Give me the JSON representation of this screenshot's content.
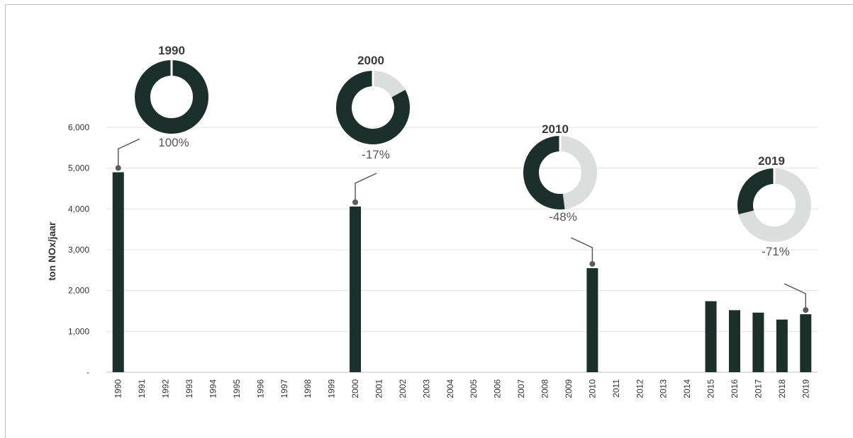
{
  "chart_data": {
    "type": "bar",
    "ylabel": "ton NOx/jaar",
    "xlabel": "",
    "title": "",
    "ylim": [
      0,
      6000
    ],
    "yticks": [
      0,
      1000,
      2000,
      3000,
      4000,
      5000,
      6000
    ],
    "ytick_labels": [
      "-",
      "1,000",
      "2,000",
      "3,000",
      "4,000",
      "5,000",
      "6,000"
    ],
    "grid": "horizontal",
    "categories": [
      "1990",
      "1991",
      "1992",
      "1993",
      "1994",
      "1995",
      "1996",
      "1997",
      "1998",
      "1999",
      "2000",
      "2001",
      "2002",
      "2003",
      "2004",
      "2005",
      "2006",
      "2007",
      "2008",
      "2009",
      "2010",
      "2011",
      "2012",
      "2013",
      "2014",
      "2015",
      "2016",
      "2017",
      "2018",
      "2019"
    ],
    "values": [
      4900,
      null,
      null,
      null,
      null,
      null,
      null,
      null,
      null,
      null,
      4060,
      null,
      null,
      null,
      null,
      null,
      null,
      null,
      null,
      null,
      2550,
      null,
      null,
      null,
      null,
      1740,
      1520,
      1460,
      1290,
      1420
    ],
    "bar_color": "#1b2f2b",
    "annotations": [
      {
        "year": "1990",
        "label": "1990",
        "pct_label": "100%",
        "share": 1.0
      },
      {
        "year": "2000",
        "label": "2000",
        "pct_label": "-17%",
        "share": 0.83
      },
      {
        "year": "2010",
        "label": "2010",
        "pct_label": "-48%",
        "share": 0.52
      },
      {
        "year": "2019",
        "label": "2019",
        "pct_label": "-71%",
        "share": 0.29
      }
    ],
    "donut_colors": {
      "filled": "#1b2f2b",
      "remaining": "#dcdedd"
    }
  }
}
